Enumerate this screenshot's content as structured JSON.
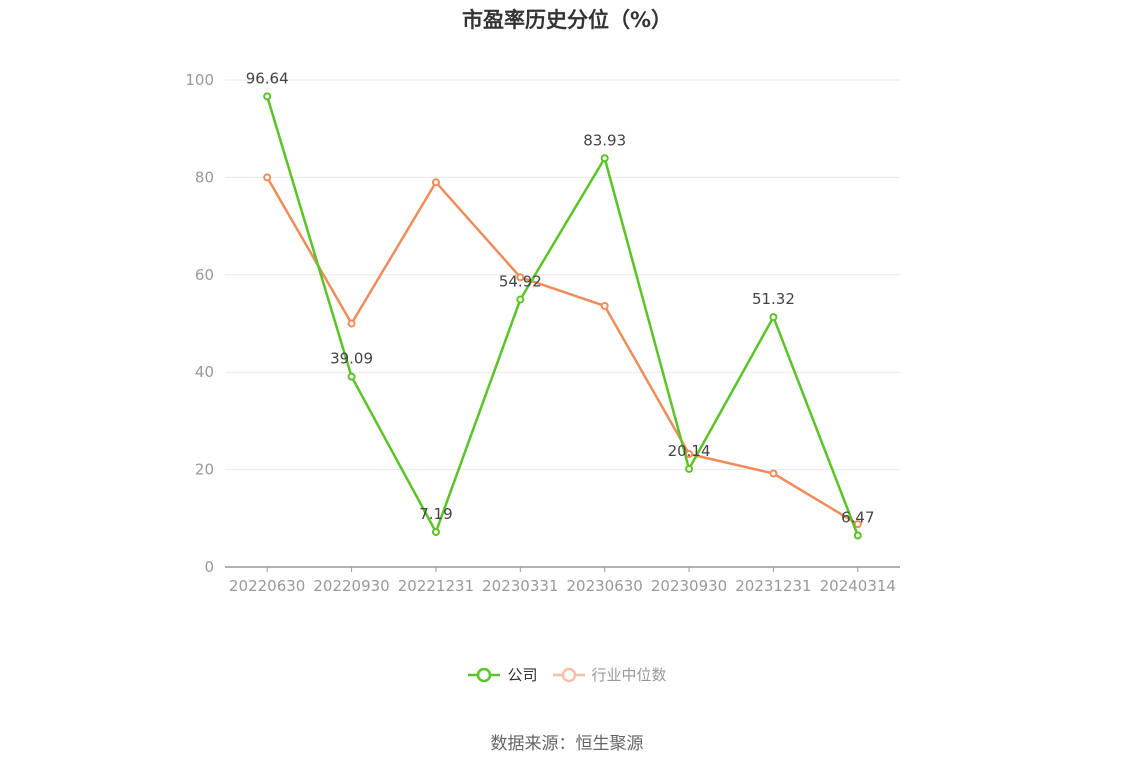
{
  "chart_data": {
    "type": "line",
    "title": "市盈率历史分位（%）",
    "categories": [
      "20220630",
      "20220930",
      "20221231",
      "20230331",
      "20230630",
      "20230930",
      "20231231",
      "20240314"
    ],
    "series": [
      {
        "name": "公司",
        "color": "#5ac427",
        "values": [
          96.64,
          39.09,
          7.19,
          54.92,
          83.93,
          20.14,
          51.32,
          6.47
        ],
        "labels": [
          "96.64",
          "39.09",
          "7.19",
          "54.92",
          "83.93",
          "20.14",
          "51.32",
          "6.47"
        ]
      },
      {
        "name": "行业中位数",
        "color": "#f08c5a",
        "legend_color": "#f7bfa6",
        "values": [
          80.0,
          50.0,
          79.0,
          59.5,
          53.6,
          23.2,
          19.2,
          8.8
        ]
      }
    ],
    "yticks": [
      0,
      20,
      40,
      60,
      80,
      100
    ],
    "ylim": [
      0,
      100
    ],
    "grid": true,
    "legend": "bottom-center",
    "source": "数据来源：恒生聚源"
  }
}
